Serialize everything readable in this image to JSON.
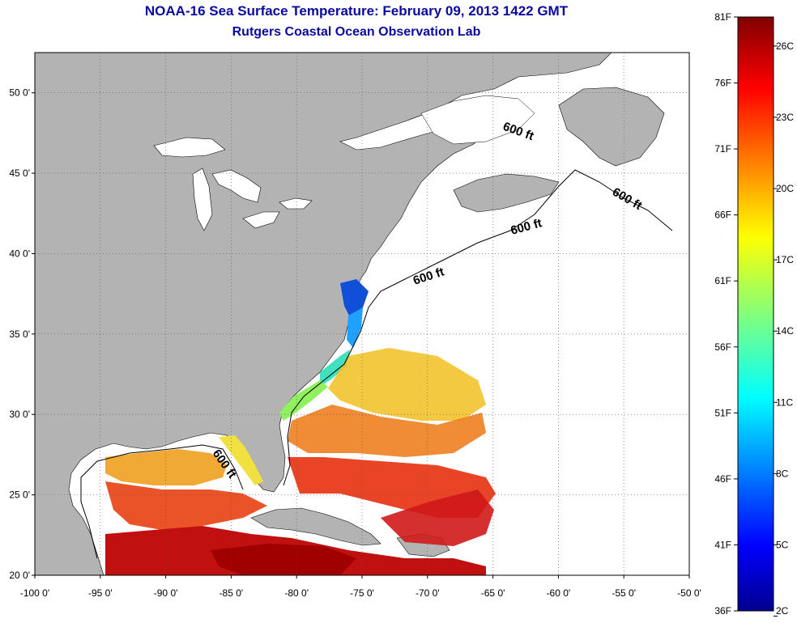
{
  "title": "NOAA-16 Sea Surface Temperature:  February 09, 2013 1422 GMT",
  "subtitle": "Rutgers Coastal Ocean Observation Lab",
  "map": {
    "longitude_ticks": [
      "-100 0'",
      "-95 0'",
      "-90 0'",
      "-85 0'",
      "-80 0'",
      "-75 0'",
      "-70 0'",
      "-65 0'",
      "-60 0'",
      "-55 0'",
      "-50 0'"
    ],
    "latitude_ticks": [
      "20 0'",
      "25 0'",
      "30 0'",
      "35 0'",
      "40 0'",
      "45 0'",
      "50 0'"
    ],
    "lon_range": [
      -100,
      -50
    ],
    "lat_range": [
      20,
      52.5
    ],
    "grid": true,
    "land_color": "#b3b3b3",
    "isobath_label": "600 ft"
  },
  "colorbar": {
    "fahrenheit_labels": [
      "81F",
      "76F",
      "71F",
      "66F",
      "61F",
      "56F",
      "51F",
      "46F",
      "41F",
      "36F"
    ],
    "celsius_labels": [
      "26C",
      "23C",
      "20C",
      "17C",
      "14C",
      "11C",
      "8C",
      "5C",
      "2C"
    ],
    "range_f": [
      36,
      81
    ],
    "colormap": "jet"
  }
}
